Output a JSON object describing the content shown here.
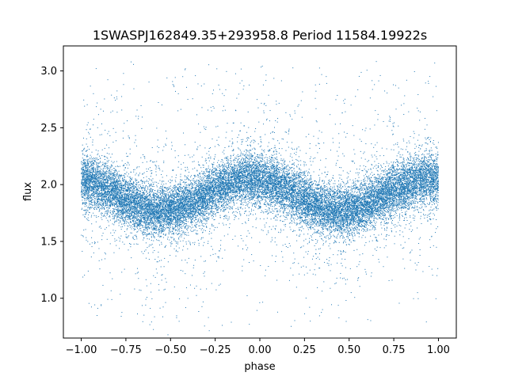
{
  "chart_data": {
    "type": "scatter",
    "title": "1SWASPJ162849.35+293958.8 Period 11584.19922s",
    "xlabel": "phase",
    "ylabel": "flux",
    "xlim": [
      -1.1,
      1.1
    ],
    "ylim": [
      0.65,
      3.22
    ],
    "x_ticks": [
      -1.0,
      -0.75,
      -0.5,
      -0.25,
      0.0,
      0.25,
      0.5,
      0.75,
      1.0
    ],
    "x_tick_labels": [
      "−1.00",
      "−0.75",
      "−0.50",
      "−0.25",
      "0.00",
      "0.25",
      "0.50",
      "0.75",
      "1.00"
    ],
    "y_ticks": [
      1.0,
      1.5,
      2.0,
      2.5,
      3.0
    ],
    "y_tick_labels": [
      "1.0",
      "1.5",
      "2.0",
      "2.5",
      "3.0"
    ],
    "grid": false,
    "legend": "none",
    "point_color": "#1f77b4",
    "series": [
      {
        "phase_range": [
          -1.0,
          1.0
        ],
        "model": "sinusoid",
        "mean_flux": 1.91,
        "amplitude": 0.14,
        "minima_phase": [
          -0.55,
          0.45
        ],
        "maxima_phase": [
          -0.05,
          0.95,
          -1.0
        ],
        "scatter_sigma": 0.11,
        "outlier_flux_range": [
          0.75,
          3.1
        ],
        "approx_points": 22000
      }
    ]
  }
}
